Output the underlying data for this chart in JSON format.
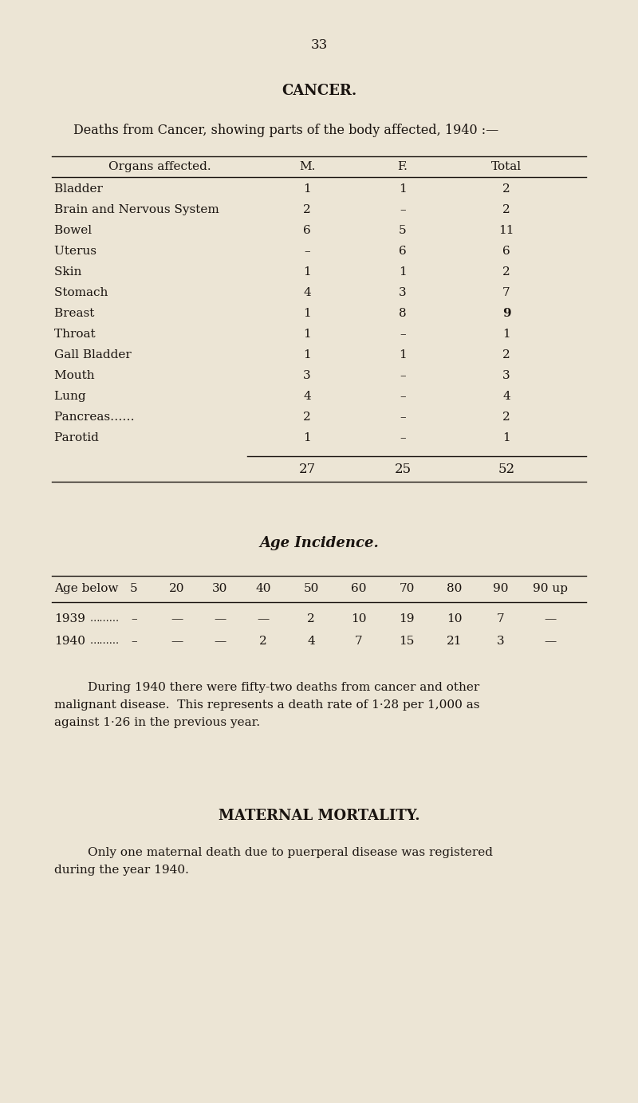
{
  "page_number": "33",
  "bg_color": "#ece5d5",
  "text_color": "#1a1410",
  "section_title": "CANCER.",
  "subtitle": "Deaths from Cancer, showing parts of the body affected, 1940 :—",
  "table1_header": [
    "Organs affected.",
    "M.",
    "F.",
    "Total"
  ],
  "organ_names": [
    "Bladder",
    "Brain and Nervous System",
    "Bowel",
    "Uterus",
    "Skin",
    "Stomach",
    "Breast",
    "Throat",
    "Gall Bladder",
    "Mouth",
    "Lung",
    "Pancreas……",
    "Parotid"
  ],
  "organ_dots": [
    "                             ",
    "            ",
    "                              ",
    "                              ",
    "                            ",
    "                              ",
    "                              ",
    "                              ",
    "                        ",
    "                              ",
    "                              ",
    "                        ",
    "                              "
  ],
  "table1_M": [
    "1",
    "2",
    "6",
    "–",
    "1",
    "4",
    "1",
    "1",
    "1",
    "3",
    "4",
    "2",
    "1"
  ],
  "table1_F": [
    "1",
    "–",
    "5",
    "6",
    "1",
    "3",
    "8",
    "–",
    "1",
    "–",
    "–",
    "–",
    "–"
  ],
  "table1_Total": [
    "2",
    "2",
    "11",
    "6",
    "2",
    "7",
    "9",
    "1",
    "2",
    "3",
    "4",
    "2",
    "1"
  ],
  "bold_total": [
    false,
    false,
    false,
    false,
    false,
    false,
    true,
    false,
    false,
    false,
    false,
    false,
    false
  ],
  "table1_totals": [
    "27",
    "25",
    "52"
  ],
  "age_title": "Age Incidence.",
  "age_header": [
    "Age below",
    "5",
    "20",
    "30",
    "40",
    "50",
    "60",
    "70",
    "80",
    "90",
    "90 up"
  ],
  "age_rows": [
    [
      "1939",
      "………",
      "–",
      "—",
      "—",
      "—",
      "2",
      "10",
      "19",
      "10",
      "7",
      "—"
    ],
    [
      "1940",
      "………",
      "–",
      "—",
      "—",
      "2",
      "4",
      "7",
      "15",
      "21",
      "3",
      "—"
    ]
  ],
  "para1_line1": "During 1940 there were fifty-two deaths from cancer and other",
  "para1_line2": "malignant disease.  This represents a death rate of 1·28 per 1,000 as",
  "para1_line3": "against 1·26 in the previous year.",
  "section2_title": "MATERNAL MORTALITY.",
  "para2_line1": "Only one maternal death due to puerperal disease was registered",
  "para2_line2": "during the year 1940."
}
